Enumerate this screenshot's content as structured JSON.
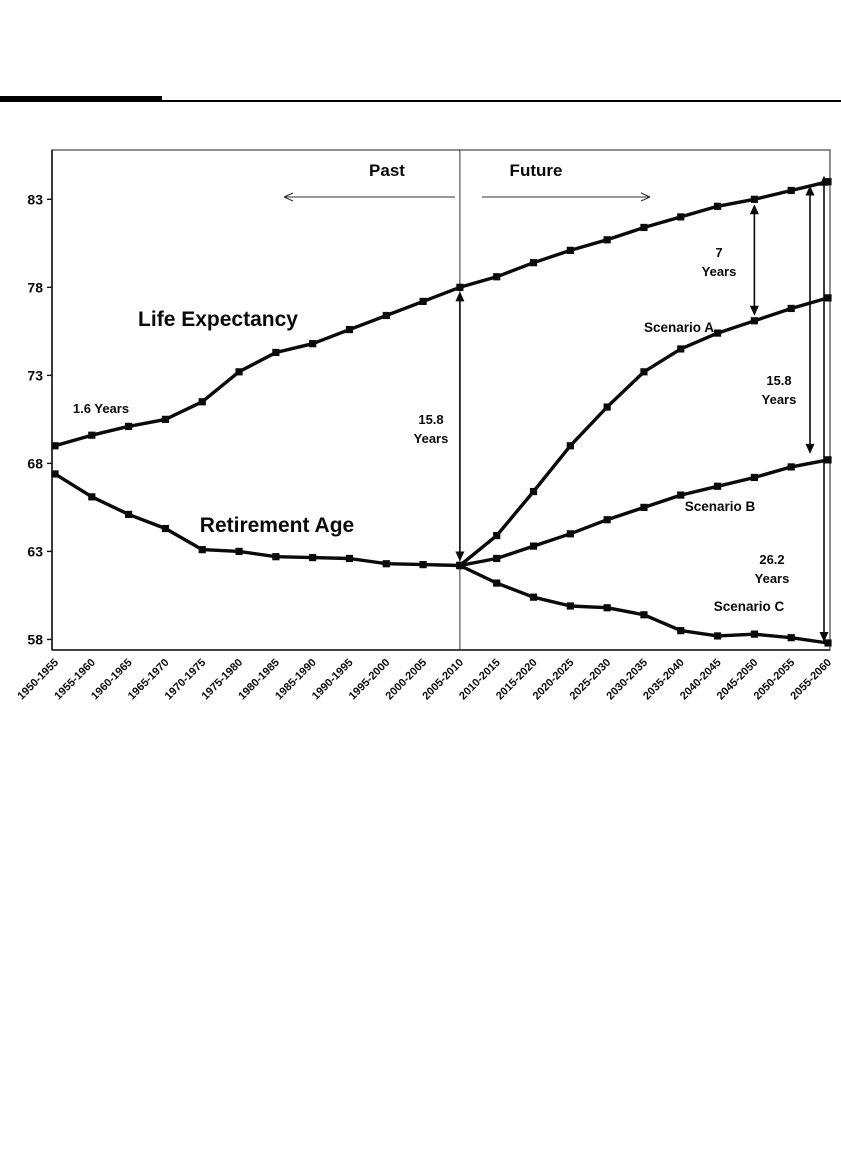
{
  "chart_data": {
    "type": "line",
    "title": "",
    "xlabel": "",
    "ylabel": "",
    "ylim": [
      57.4,
      85.8
    ],
    "yticks": [
      58,
      63,
      68,
      73,
      78,
      83
    ],
    "grid": false,
    "legend_position": "none",
    "line_color": "#0a0a0a",
    "marker": "square",
    "divider_index": 11,
    "categories": [
      "1950-1955",
      "1955-1960",
      "1960-1965",
      "1965-1970",
      "1970-1975",
      "1975-1980",
      "1980-1985",
      "1985-1990",
      "1990-1995",
      "1995-2000",
      "2000-2005",
      "2005-2010",
      "2010-2015",
      "2015-2020",
      "2020-2025",
      "2025-2030",
      "2030-2035",
      "2035-2040",
      "2040-2045",
      "2045-2050",
      "2050-2055",
      "2055-2060"
    ],
    "series": [
      {
        "name": "Life Expectancy",
        "values": [
          69.0,
          69.6,
          70.1,
          70.5,
          71.5,
          73.2,
          74.3,
          74.8,
          75.6,
          76.4,
          77.2,
          78.0,
          78.6,
          79.4,
          80.1,
          80.7,
          81.4,
          82.0,
          82.6,
          83.0,
          83.5,
          84.0
        ]
      },
      {
        "name": "Retirement Age",
        "values": [
          67.4,
          66.1,
          65.1,
          64.3,
          63.1,
          63.0,
          62.7,
          62.65,
          62.6,
          62.3,
          62.25,
          62.2,
          null,
          null,
          null,
          null,
          null,
          null,
          null,
          null,
          null,
          null
        ]
      },
      {
        "name": "Scenario A",
        "values": [
          null,
          null,
          null,
          null,
          null,
          null,
          null,
          null,
          null,
          null,
          null,
          62.2,
          63.9,
          66.4,
          69.0,
          71.2,
          73.2,
          74.5,
          75.4,
          76.1,
          76.8,
          77.4
        ]
      },
      {
        "name": "Scenario B",
        "values": [
          null,
          null,
          null,
          null,
          null,
          null,
          null,
          null,
          null,
          null,
          null,
          62.2,
          62.6,
          63.3,
          64.0,
          64.8,
          65.5,
          66.2,
          66.7,
          67.2,
          67.8,
          68.2
        ]
      },
      {
        "name": "Scenario C",
        "values": [
          null,
          null,
          null,
          null,
          null,
          null,
          null,
          null,
          null,
          null,
          null,
          62.2,
          61.2,
          60.4,
          59.9,
          59.8,
          59.4,
          58.5,
          58.2,
          58.3,
          58.1,
          57.8
        ]
      }
    ],
    "annotations": {
      "past": "Past",
      "future": "Future",
      "life_expectancy": "Life Expectancy",
      "retirement_age": "Retirement Age",
      "scenario_a": "Scenario A",
      "scenario_b": "Scenario B",
      "scenario_c": "Scenario C",
      "gap_1950": "1.6 Years",
      "gap_2005": [
        "15.8",
        "Years"
      ],
      "gap_scenario_a": [
        "7",
        "Years"
      ],
      "gap_scenario_b": [
        "15.8",
        "Years"
      ],
      "gap_scenario_c": [
        "26.2",
        "Years"
      ]
    }
  }
}
